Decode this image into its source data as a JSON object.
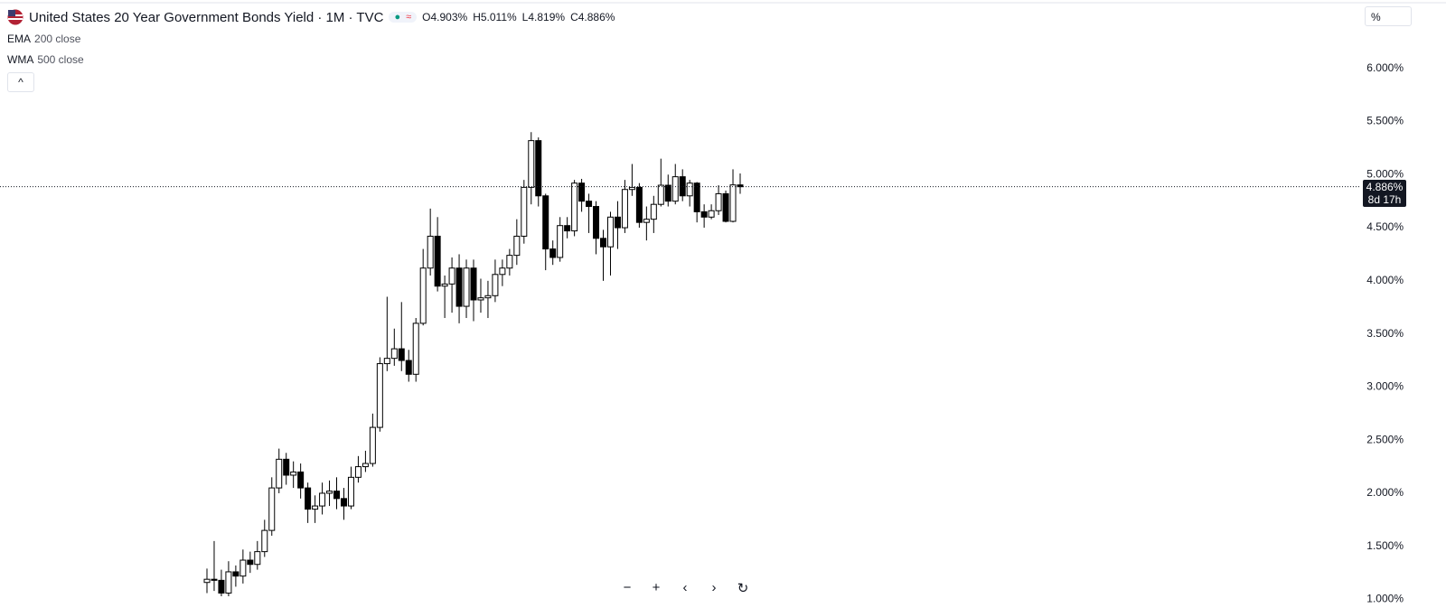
{
  "chart_data": {
    "type": "candlestick",
    "title": "United States 20 Year Government Bonds Yield · 1M · TVC",
    "ohlc_header": [
      {
        "label": "O",
        "value": "4.903%"
      },
      {
        "label": "H",
        "value": "5.011%"
      },
      {
        "label": "L",
        "value": "4.819%"
      },
      {
        "label": "C",
        "value": "4.886%"
      }
    ],
    "indicators": [
      {
        "name": "EMA",
        "params": "200 close"
      },
      {
        "name": "WMA",
        "params": "500 close"
      }
    ],
    "scale_mode": "%",
    "last_price_label": "4.886%",
    "countdown": "8d 17h",
    "up_color": "#ffffff",
    "down_color": "#000000",
    "outline_color": "#000000",
    "open": [
      1.16,
      1.19,
      1.18,
      1.06,
      1.26,
      1.22,
      1.37,
      1.33,
      1.45,
      1.65,
      2.05,
      2.32,
      2.17,
      2.2,
      2.05,
      1.85,
      1.88,
      2.0,
      2.02,
      1.95,
      1.88,
      2.15,
      2.25,
      2.28,
      2.62,
      3.22,
      3.27,
      3.36,
      3.25,
      3.12,
      3.6,
      4.12,
      4.42,
      3.95,
      3.97,
      4.12,
      3.76,
      4.12,
      3.82,
      3.84,
      3.86,
      4.06,
      4.12,
      4.24,
      4.42,
      4.88,
      5.32,
      4.8,
      4.3,
      4.22,
      4.52,
      4.47,
      4.92,
      4.75,
      4.7,
      4.4,
      4.32,
      4.6,
      4.5,
      4.86,
      4.88,
      4.55,
      4.58,
      4.72,
      4.9,
      4.75,
      4.98,
      4.8,
      4.92,
      4.65,
      4.6,
      4.66,
      4.82,
      4.56,
      4.903
    ],
    "high": [
      1.29,
      1.55,
      1.28,
      1.36,
      1.32,
      1.47,
      1.45,
      1.55,
      1.75,
      2.15,
      2.42,
      2.38,
      2.3,
      2.28,
      2.1,
      1.98,
      2.1,
      2.12,
      2.15,
      2.05,
      2.25,
      2.35,
      2.4,
      2.75,
      3.28,
      3.85,
      3.55,
      3.8,
      3.35,
      3.65,
      4.3,
      4.68,
      4.6,
      4.05,
      4.22,
      4.25,
      4.2,
      4.2,
      4.02,
      4.0,
      4.2,
      4.2,
      4.3,
      4.58,
      4.95,
      5.4,
      5.35,
      4.82,
      4.38,
      4.6,
      4.6,
      4.95,
      4.96,
      4.82,
      4.75,
      4.48,
      4.65,
      4.75,
      4.95,
      5.1,
      4.92,
      4.7,
      4.8,
      5.15,
      5.0,
      5.1,
      5.05,
      4.95,
      4.93,
      4.72,
      4.72,
      4.9,
      4.85,
      5.05,
      5.011
    ],
    "low": [
      1.06,
      1.08,
      1.02,
      1.0,
      1.12,
      1.15,
      1.25,
      1.28,
      1.4,
      1.6,
      2.0,
      2.08,
      2.05,
      1.95,
      1.72,
      1.72,
      1.8,
      1.88,
      1.85,
      1.75,
      1.85,
      2.1,
      2.2,
      2.25,
      2.58,
      3.15,
      3.2,
      3.15,
      3.05,
      3.05,
      3.58,
      4.05,
      3.9,
      3.65,
      3.7,
      3.6,
      3.65,
      3.62,
      3.7,
      3.65,
      3.8,
      3.95,
      4.05,
      4.15,
      4.35,
      4.72,
      4.7,
      4.1,
      4.15,
      4.18,
      4.4,
      4.42,
      4.65,
      4.45,
      4.25,
      4.0,
      4.05,
      4.3,
      4.45,
      4.8,
      4.5,
      4.38,
      4.45,
      4.7,
      4.7,
      4.72,
      4.75,
      4.7,
      4.55,
      4.5,
      4.58,
      4.62,
      4.55,
      4.55,
      4.819
    ],
    "close": [
      1.19,
      1.18,
      1.06,
      1.26,
      1.22,
      1.37,
      1.33,
      1.45,
      1.65,
      2.05,
      2.32,
      2.17,
      2.2,
      2.05,
      1.85,
      1.88,
      2.0,
      2.02,
      1.95,
      1.88,
      2.15,
      2.25,
      2.28,
      2.62,
      3.22,
      3.27,
      3.36,
      3.25,
      3.12,
      3.6,
      4.12,
      4.42,
      3.95,
      3.97,
      4.12,
      3.76,
      4.12,
      3.82,
      3.84,
      3.86,
      4.06,
      4.12,
      4.24,
      4.42,
      4.88,
      5.32,
      4.8,
      4.3,
      4.22,
      4.52,
      4.47,
      4.92,
      4.75,
      4.7,
      4.4,
      4.32,
      4.6,
      4.5,
      4.86,
      4.88,
      4.55,
      4.58,
      4.72,
      4.9,
      4.75,
      4.98,
      4.8,
      4.92,
      4.65,
      4.6,
      4.66,
      4.82,
      4.56,
      4.903,
      4.886
    ],
    "ylim": [
      1.03,
      6.61
    ],
    "yticks": [
      {
        "value": 1.0,
        "label": "1.000%"
      },
      {
        "value": 1.5,
        "label": "1.500%"
      },
      {
        "value": 2.0,
        "label": "2.000%"
      },
      {
        "value": 2.5,
        "label": "2.500%"
      },
      {
        "value": 3.0,
        "label": "3.000%"
      },
      {
        "value": 3.5,
        "label": "3.500%"
      },
      {
        "value": 4.0,
        "label": "4.000%"
      },
      {
        "value": 4.5,
        "label": "4.500%"
      },
      {
        "value": 5.0,
        "label": "5.000%"
      },
      {
        "value": 5.5,
        "label": "5.500%"
      },
      {
        "value": 6.0,
        "label": "6.000%"
      }
    ],
    "grid": false
  }
}
